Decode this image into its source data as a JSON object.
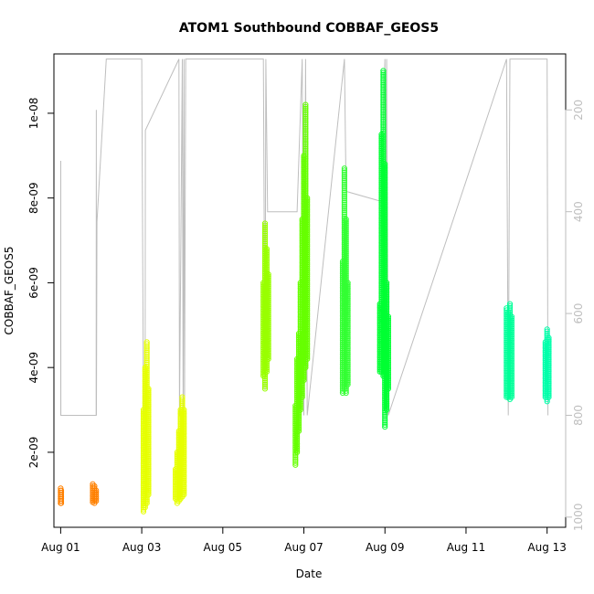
{
  "chart_data": {
    "type": "scatter",
    "title": "ATOM1 Southbound COBBAF_GEOS5",
    "xlabel": "Date",
    "ylabel": "COBBAF_GEOS5",
    "x_ticks": [
      "Aug 01",
      "Aug 03",
      "Aug 05",
      "Aug 07",
      "Aug 09",
      "Aug 11",
      "Aug 13"
    ],
    "y_ticks": [
      "2e-09",
      "4e-09",
      "6e-09",
      "8e-09",
      "1e-08"
    ],
    "y_tick_values": [
      2e-09,
      4e-09,
      6e-09,
      8e-09,
      1e-08
    ],
    "y2_ticks": [
      "200",
      "400",
      "600",
      "800",
      "1000"
    ],
    "y2_tick_values": [
      200,
      400,
      600,
      800,
      1000
    ],
    "xlim": [
      "2016-07-31T20:00",
      "2016-08-13T11:00"
    ],
    "ylim": [
      2.3e-10,
      1.14e-08
    ],
    "y2lim": [
      1020,
      90
    ],
    "grid": false,
    "pressure_axis": "right, reversed (hPa, grey)",
    "series": [
      {
        "color": "#FF8000",
        "x": [
          "2016-08-01T00:00",
          "2016-08-01T00:10",
          "2016-08-01T00:20",
          "2016-08-01T19:00",
          "2016-08-01T20:00",
          "2016-08-01T21:00"
        ],
        "y_min": [
          8e-10,
          8.5e-10,
          8e-10,
          8.2e-10,
          8e-10,
          8.5e-10
        ],
        "y_max": [
          1.15e-09,
          1.05e-09,
          1.1e-09,
          1.25e-09,
          1.2e-09,
          1.1e-09
        ]
      },
      {
        "color": "#E6FF00",
        "x": [
          "2016-08-03T01:00",
          "2016-08-03T02:00",
          "2016-08-03T03:00",
          "2016-08-03T04:00",
          "2016-08-03T20:00",
          "2016-08-03T21:00",
          "2016-08-03T22:00",
          "2016-08-03T23:00",
          "2016-08-04T00:00",
          "2016-08-04T01:00"
        ],
        "y_min": [
          6e-10,
          7e-10,
          8e-10,
          1e-09,
          9e-10,
          8e-10,
          8.5e-10,
          9e-10,
          9.5e-10,
          1e-09
        ],
        "y_max": [
          3e-09,
          4e-09,
          4.6e-09,
          3.5e-09,
          1.6e-09,
          2e-09,
          2.5e-09,
          3e-09,
          3.3e-09,
          3e-09
        ]
      },
      {
        "color": "#99FF00",
        "x": [
          "2016-08-06T00:00",
          "2016-08-06T01:00",
          "2016-08-06T02:00",
          "2016-08-06T03:00"
        ],
        "y_min": [
          3.8e-09,
          3.5e-09,
          3.9e-09,
          4.2e-09
        ],
        "y_max": [
          6e-09,
          7.4e-09,
          6.8e-09,
          6.2e-09
        ]
      },
      {
        "color": "#66FF00",
        "x": [
          "2016-08-06T19:00",
          "2016-08-06T20:00",
          "2016-08-06T21:00",
          "2016-08-06T22:00",
          "2016-08-06T23:00",
          "2016-08-07T00:00",
          "2016-08-07T01:00",
          "2016-08-07T02:00"
        ],
        "y_min": [
          1.7e-09,
          2e-09,
          2.5e-09,
          3e-09,
          3.3e-09,
          3.7e-09,
          4e-09,
          4.2e-09
        ],
        "y_max": [
          3.1e-09,
          4.2e-09,
          4.8e-09,
          6e-09,
          7.5e-09,
          9e-09,
          1.02e-08,
          8e-09
        ]
      },
      {
        "color": "#33FF33",
        "x": [
          "2016-08-07T23:00",
          "2016-08-08T00:00",
          "2016-08-08T01:00",
          "2016-08-08T02:00"
        ],
        "y_min": [
          3.4e-09,
          3.5e-09,
          3.4e-09,
          3.6e-09
        ],
        "y_max": [
          6.5e-09,
          8.7e-09,
          7.5e-09,
          6e-09
        ]
      },
      {
        "color": "#00FF33",
        "x": [
          "2016-08-08T21:00",
          "2016-08-08T22:00",
          "2016-08-08T23:00",
          "2016-08-09T00:00",
          "2016-08-09T01:00",
          "2016-08-09T02:00"
        ],
        "y_min": [
          3.9e-09,
          3.9e-09,
          3.8e-09,
          2.6e-09,
          3e-09,
          3.5e-09
        ],
        "y_max": [
          5.5e-09,
          9.5e-09,
          1.1e-08,
          8.8e-09,
          6e-09,
          5.2e-09
        ]
      },
      {
        "color": "#00FF99",
        "x": [
          "2016-08-12T00:00",
          "2016-08-12T01:00",
          "2016-08-12T02:00",
          "2016-08-12T03:00"
        ],
        "y_min": [
          3.3e-09,
          3.3e-09,
          3.25e-09,
          3.3e-09
        ],
        "y_max": [
          5.4e-09,
          5.3e-09,
          5.5e-09,
          5.2e-09
        ]
      },
      {
        "color": "#00FFAA",
        "x": [
          "2016-08-12T23:00",
          "2016-08-13T00:00",
          "2016-08-13T01:00"
        ],
        "y_min": [
          3.3e-09,
          3.2e-09,
          3.3e-09
        ],
        "y_max": [
          4.6e-09,
          4.9e-09,
          4.7e-09
        ]
      }
    ],
    "pressure_trace": {
      "color": "#BEBEBE",
      "x": [
        "2016-08-01T00:00",
        "2016-08-01T00:02",
        "2016-08-01T00:05",
        "2016-08-01T00:08",
        "2016-08-01T21:00",
        "2016-08-01T21:05",
        "2016-08-01T21:10",
        "2016-08-01T21:30",
        "2016-08-02T03:00",
        "2016-08-03T00:00",
        "2016-08-03T01:00",
        "2016-08-03T02:00",
        "2016-08-03T02:10",
        "2016-08-03T22:00",
        "2016-08-03T22:20",
        "2016-08-04T00:00",
        "2016-08-04T00:30",
        "2016-08-04T01:00",
        "2016-08-04T01:20",
        "2016-08-04T02:00",
        "2016-08-04T08:00",
        "2016-08-06T00:00",
        "2016-08-06T01:00",
        "2016-08-06T01:30",
        "2016-08-06T02:30",
        "2016-08-06T20:00",
        "2016-08-06T23:00",
        "2016-08-07T00:00",
        "2016-08-07T01:00",
        "2016-08-07T02:00",
        "2016-08-08T00:00",
        "2016-08-08T01:00",
        "2016-08-08T22:00",
        "2016-08-09T00:00",
        "2016-08-09T00:30",
        "2016-08-09T01:00",
        "2016-08-09T02:00",
        "2016-08-12T00:00",
        "2016-08-12T01:00",
        "2016-08-12T02:00",
        "2016-08-13T00:00",
        "2016-08-13T00:30"
      ],
      "p": [
        600,
        800,
        300,
        800,
        800,
        200,
        800,
        420,
        100,
        100,
        800,
        800,
        240,
        100,
        800,
        100,
        800,
        100,
        800,
        100,
        100,
        100,
        750,
        100,
        400,
        400,
        100,
        800,
        100,
        800,
        100,
        360,
        380,
        100,
        800,
        100,
        800,
        100,
        800,
        100,
        100,
        800
      ]
    }
  }
}
